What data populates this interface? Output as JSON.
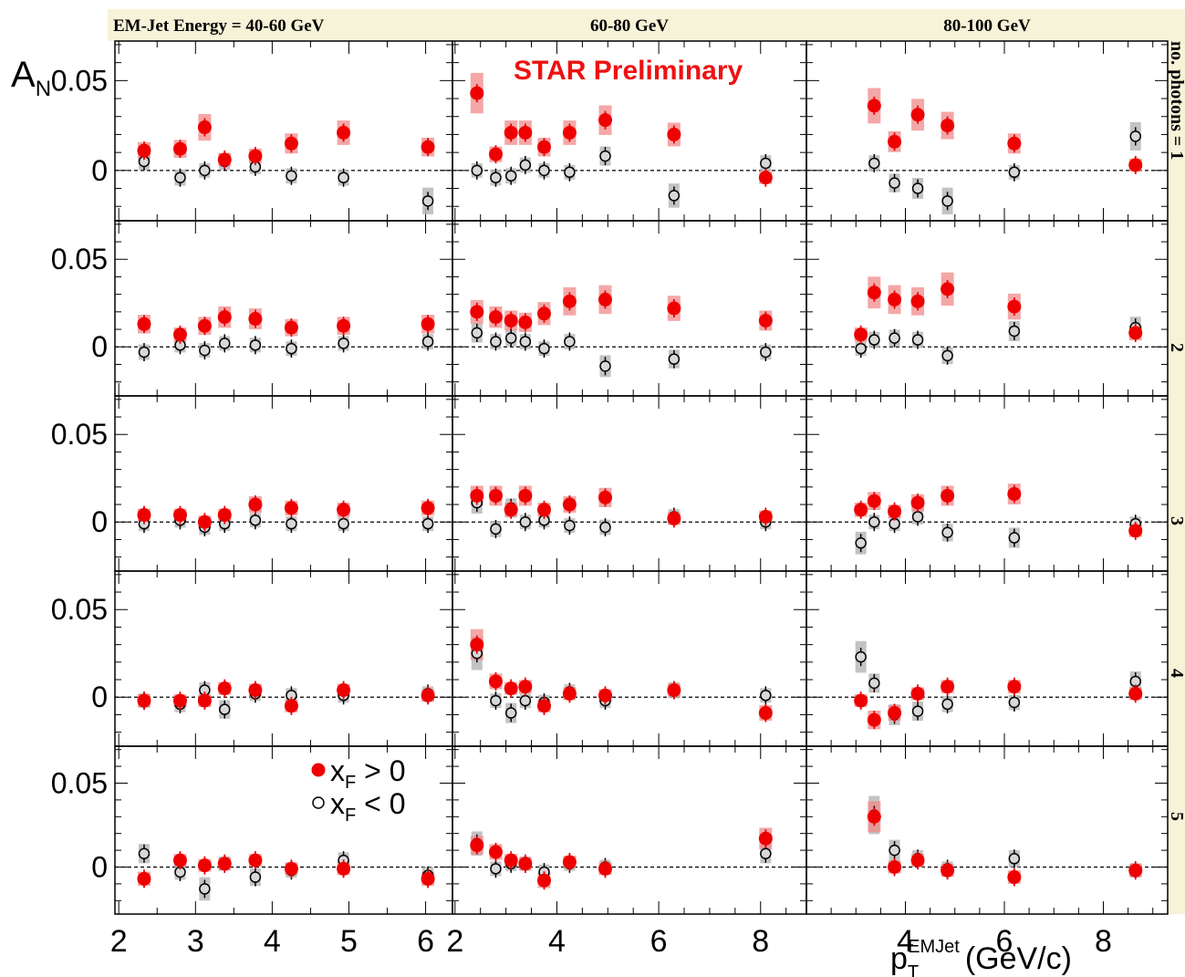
{
  "ylabel": "A",
  "ylabel_sub": "N",
  "xlabel": "p",
  "xlabel_sub": "T",
  "xlabel_sup": "EMJet",
  "xlabel_unit": "(GeV/c)",
  "preliminary": "STAR Preliminary",
  "row_label_prefix": "no. photons = ",
  "columns": [
    {
      "label": "EM-Jet Energy = 40-60 GeV",
      "xticks": [
        "2",
        "3",
        "4",
        "5",
        "6"
      ],
      "xlim": [
        1.95,
        6.35
      ]
    },
    {
      "label": "60-80 GeV",
      "xticks": [
        "2",
        "4",
        "6",
        "8"
      ],
      "xlim": [
        1.95,
        8.9
      ]
    },
    {
      "label": "80-100 GeV",
      "xticks": [
        "4",
        "6",
        "8"
      ],
      "xlim": [
        2.0,
        9.3
      ]
    }
  ],
  "rows": [
    "1",
    "2",
    "3",
    "4",
    "5"
  ],
  "yticks": [
    "0",
    "0.05"
  ],
  "ylim": [
    -0.028,
    0.072
  ],
  "legend": {
    "pos_label": "x",
    "pos_sub": "F",
    "pos_rel": " > 0",
    "neg_label": "x",
    "neg_sub": "F",
    "neg_rel": " < 0"
  },
  "colors": {
    "pos": "#ee0000",
    "pos_sys": "#f08a8a",
    "neg_sys": "#b8b8b8",
    "header_bg": "#f6f3d8",
    "preliminary": "#ee1111"
  },
  "chart_data": {
    "type": "scatter",
    "series_names": [
      "x_F > 0",
      "x_F < 0"
    ],
    "panels": [
      {
        "row": 1,
        "col": 1,
        "pos": [
          [
            2.33,
            0.011
          ],
          [
            2.8,
            0.012
          ],
          [
            3.12,
            0.024
          ],
          [
            3.38,
            0.006
          ],
          [
            3.78,
            0.008
          ],
          [
            4.25,
            0.015
          ],
          [
            4.93,
            0.021
          ],
          [
            6.03,
            0.013
          ]
        ],
        "neg": [
          [
            2.33,
            0.005
          ],
          [
            2.8,
            -0.004
          ],
          [
            3.12,
            0.0
          ],
          [
            3.38,
            0.005
          ],
          [
            3.78,
            0.002
          ],
          [
            4.25,
            -0.003
          ],
          [
            4.93,
            -0.004
          ],
          [
            6.03,
            -0.017
          ]
        ]
      },
      {
        "row": 1,
        "col": 2,
        "pos": [
          [
            2.43,
            0.043
          ],
          [
            2.8,
            0.009
          ],
          [
            3.1,
            0.021
          ],
          [
            3.38,
            0.021
          ],
          [
            3.75,
            0.013
          ],
          [
            4.25,
            0.021
          ],
          [
            4.95,
            0.028
          ],
          [
            6.3,
            0.02
          ],
          [
            8.1,
            -0.004
          ]
        ],
        "neg": [
          [
            2.43,
            0.0
          ],
          [
            2.8,
            -0.004
          ],
          [
            3.1,
            -0.003
          ],
          [
            3.38,
            0.003
          ],
          [
            3.75,
            0.0
          ],
          [
            4.25,
            -0.001
          ],
          [
            4.95,
            0.008
          ],
          [
            6.3,
            -0.014
          ],
          [
            8.1,
            0.004
          ]
        ]
      },
      {
        "row": 1,
        "col": 3,
        "pos": [
          [
            3.37,
            0.036
          ],
          [
            3.78,
            0.016
          ],
          [
            4.25,
            0.031
          ],
          [
            4.85,
            0.025
          ],
          [
            6.2,
            0.015
          ],
          [
            8.65,
            0.003
          ]
        ],
        "neg": [
          [
            3.37,
            0.004
          ],
          [
            3.78,
            -0.007
          ],
          [
            4.25,
            -0.01
          ],
          [
            4.85,
            -0.017
          ],
          [
            6.2,
            -0.001
          ],
          [
            8.65,
            0.019
          ]
        ]
      },
      {
        "row": 2,
        "col": 1,
        "pos": [
          [
            2.33,
            0.013
          ],
          [
            2.8,
            0.007
          ],
          [
            3.12,
            0.012
          ],
          [
            3.38,
            0.017
          ],
          [
            3.78,
            0.016
          ],
          [
            4.25,
            0.011
          ],
          [
            4.93,
            0.012
          ],
          [
            6.03,
            0.013
          ]
        ],
        "neg": [
          [
            2.33,
            -0.003
          ],
          [
            2.8,
            0.001
          ],
          [
            3.12,
            -0.002
          ],
          [
            3.38,
            0.002
          ],
          [
            3.78,
            0.001
          ],
          [
            4.25,
            -0.001
          ],
          [
            4.93,
            0.002
          ],
          [
            6.03,
            0.003
          ]
        ]
      },
      {
        "row": 2,
        "col": 2,
        "pos": [
          [
            2.43,
            0.02
          ],
          [
            2.8,
            0.017
          ],
          [
            3.1,
            0.015
          ],
          [
            3.38,
            0.014
          ],
          [
            3.75,
            0.019
          ],
          [
            4.25,
            0.026
          ],
          [
            4.95,
            0.027
          ],
          [
            6.3,
            0.022
          ],
          [
            8.1,
            0.015
          ]
        ],
        "neg": [
          [
            2.43,
            0.008
          ],
          [
            2.8,
            0.003
          ],
          [
            3.1,
            0.005
          ],
          [
            3.38,
            0.003
          ],
          [
            3.75,
            -0.001
          ],
          [
            4.25,
            0.003
          ],
          [
            4.95,
            -0.011
          ],
          [
            6.3,
            -0.007
          ],
          [
            8.1,
            -0.003
          ]
        ]
      },
      {
        "row": 2,
        "col": 3,
        "pos": [
          [
            3.1,
            0.007
          ],
          [
            3.37,
            0.031
          ],
          [
            3.78,
            0.027
          ],
          [
            4.25,
            0.026
          ],
          [
            4.85,
            0.033
          ],
          [
            6.2,
            0.023
          ],
          [
            8.65,
            0.008
          ]
        ],
        "neg": [
          [
            3.1,
            -0.001
          ],
          [
            3.37,
            0.004
          ],
          [
            3.78,
            0.005
          ],
          [
            4.25,
            0.004
          ],
          [
            4.85,
            -0.005
          ],
          [
            6.2,
            0.009
          ],
          [
            8.65,
            0.011
          ]
        ]
      },
      {
        "row": 3,
        "col": 1,
        "pos": [
          [
            2.33,
            0.004
          ],
          [
            2.8,
            0.004
          ],
          [
            3.12,
            0.0
          ],
          [
            3.38,
            0.004
          ],
          [
            3.78,
            0.01
          ],
          [
            4.25,
            0.008
          ],
          [
            4.93,
            0.007
          ],
          [
            6.03,
            0.008
          ]
        ],
        "neg": [
          [
            2.33,
            -0.001
          ],
          [
            2.8,
            0.001
          ],
          [
            3.12,
            -0.003
          ],
          [
            3.38,
            -0.001
          ],
          [
            3.78,
            0.001
          ],
          [
            4.25,
            -0.001
          ],
          [
            4.93,
            -0.001
          ],
          [
            6.03,
            -0.001
          ]
        ]
      },
      {
        "row": 3,
        "col": 2,
        "pos": [
          [
            2.43,
            0.015
          ],
          [
            2.8,
            0.015
          ],
          [
            3.1,
            0.007
          ],
          [
            3.38,
            0.015
          ],
          [
            3.75,
            0.007
          ],
          [
            4.25,
            0.01
          ],
          [
            4.95,
            0.014
          ],
          [
            6.3,
            0.002
          ],
          [
            8.1,
            0.003
          ]
        ],
        "neg": [
          [
            2.43,
            0.011
          ],
          [
            2.8,
            -0.004
          ],
          [
            3.1,
            0.008
          ],
          [
            3.38,
            0.0
          ],
          [
            3.75,
            0.001
          ],
          [
            4.25,
            -0.002
          ],
          [
            4.95,
            -0.003
          ],
          [
            6.3,
            0.003
          ],
          [
            8.1,
            0.0
          ]
        ]
      },
      {
        "row": 3,
        "col": 3,
        "pos": [
          [
            3.1,
            0.007
          ],
          [
            3.37,
            0.012
          ],
          [
            3.78,
            0.006
          ],
          [
            4.25,
            0.011
          ],
          [
            4.85,
            0.015
          ],
          [
            6.2,
            0.016
          ],
          [
            8.65,
            -0.005
          ]
        ],
        "neg": [
          [
            3.1,
            -0.012
          ],
          [
            3.37,
            0.0
          ],
          [
            3.78,
            -0.001
          ],
          [
            4.25,
            0.003
          ],
          [
            4.85,
            -0.006
          ],
          [
            6.2,
            -0.009
          ],
          [
            8.65,
            -0.001
          ]
        ]
      },
      {
        "row": 4,
        "col": 1,
        "pos": [
          [
            2.33,
            -0.002
          ],
          [
            2.8,
            -0.002
          ],
          [
            3.12,
            -0.002
          ],
          [
            3.38,
            0.005
          ],
          [
            3.78,
            0.004
          ],
          [
            4.25,
            -0.005
          ],
          [
            4.93,
            0.004
          ],
          [
            6.03,
            0.001
          ]
        ],
        "neg": [
          [
            2.33,
            -0.002
          ],
          [
            2.8,
            -0.004
          ],
          [
            3.12,
            0.004
          ],
          [
            3.38,
            -0.007
          ],
          [
            3.78,
            0.002
          ],
          [
            4.25,
            0.001
          ],
          [
            4.93,
            0.001
          ],
          [
            6.03,
            0.002
          ]
        ]
      },
      {
        "row": 4,
        "col": 2,
        "pos": [
          [
            2.43,
            0.03
          ],
          [
            2.8,
            0.009
          ],
          [
            3.1,
            0.005
          ],
          [
            3.38,
            0.006
          ],
          [
            3.75,
            -0.005
          ],
          [
            4.25,
            0.002
          ],
          [
            4.95,
            0.001
          ],
          [
            6.3,
            0.004
          ],
          [
            8.1,
            -0.009
          ]
        ],
        "neg": [
          [
            2.43,
            0.025
          ],
          [
            2.8,
            -0.002
          ],
          [
            3.1,
            -0.009
          ],
          [
            3.38,
            -0.002
          ],
          [
            3.75,
            -0.003
          ],
          [
            4.25,
            0.003
          ],
          [
            4.95,
            -0.002
          ],
          [
            6.3,
            0.004
          ],
          [
            8.1,
            0.001
          ]
        ]
      },
      {
        "row": 4,
        "col": 3,
        "pos": [
          [
            3.1,
            -0.002
          ],
          [
            3.37,
            -0.013
          ],
          [
            3.78,
            -0.009
          ],
          [
            4.25,
            0.002
          ],
          [
            4.85,
            0.006
          ],
          [
            6.2,
            0.006
          ],
          [
            8.65,
            0.002
          ]
        ],
        "neg": [
          [
            3.1,
            0.023
          ],
          [
            3.37,
            0.008
          ],
          [
            3.78,
            -0.01
          ],
          [
            4.25,
            -0.008
          ],
          [
            4.85,
            -0.004
          ],
          [
            6.2,
            -0.003
          ],
          [
            8.65,
            0.009
          ]
        ]
      },
      {
        "row": 5,
        "col": 1,
        "pos": [
          [
            2.33,
            -0.007
          ],
          [
            2.8,
            0.004
          ],
          [
            3.12,
            0.001
          ],
          [
            3.38,
            0.002
          ],
          [
            3.78,
            0.004
          ],
          [
            4.25,
            -0.001
          ],
          [
            4.93,
            -0.001
          ],
          [
            6.03,
            -0.007
          ]
        ],
        "neg": [
          [
            2.33,
            0.008
          ],
          [
            2.8,
            -0.003
          ],
          [
            3.12,
            -0.013
          ],
          [
            3.38,
            0.002
          ],
          [
            3.78,
            -0.006
          ],
          [
            4.25,
            -0.002
          ],
          [
            4.93,
            0.004
          ],
          [
            6.03,
            -0.005
          ]
        ]
      },
      {
        "row": 5,
        "col": 2,
        "pos": [
          [
            2.43,
            0.013
          ],
          [
            2.8,
            0.009
          ],
          [
            3.1,
            0.004
          ],
          [
            3.38,
            0.002
          ],
          [
            3.75,
            -0.008
          ],
          [
            4.25,
            0.003
          ],
          [
            4.95,
            -0.001
          ],
          [
            8.1,
            0.017
          ]
        ],
        "neg": [
          [
            2.43,
            0.014
          ],
          [
            2.8,
            -0.001
          ],
          [
            3.1,
            0.002
          ],
          [
            3.38,
            0.002
          ],
          [
            3.75,
            -0.003
          ],
          [
            4.25,
            0.002
          ],
          [
            4.95,
            0.0
          ],
          [
            8.1,
            0.008
          ]
        ]
      },
      {
        "row": 5,
        "col": 3,
        "pos": [
          [
            3.37,
            0.03
          ],
          [
            3.78,
            0.0
          ],
          [
            4.25,
            0.004
          ],
          [
            4.85,
            -0.002
          ],
          [
            6.2,
            -0.006
          ],
          [
            8.65,
            -0.002
          ]
        ],
        "neg": [
          [
            3.37,
            0.031
          ],
          [
            3.78,
            0.01
          ],
          [
            4.25,
            0.005
          ],
          [
            4.85,
            -0.001
          ],
          [
            6.2,
            0.005
          ],
          [
            8.65,
            -0.002
          ]
        ]
      }
    ]
  }
}
